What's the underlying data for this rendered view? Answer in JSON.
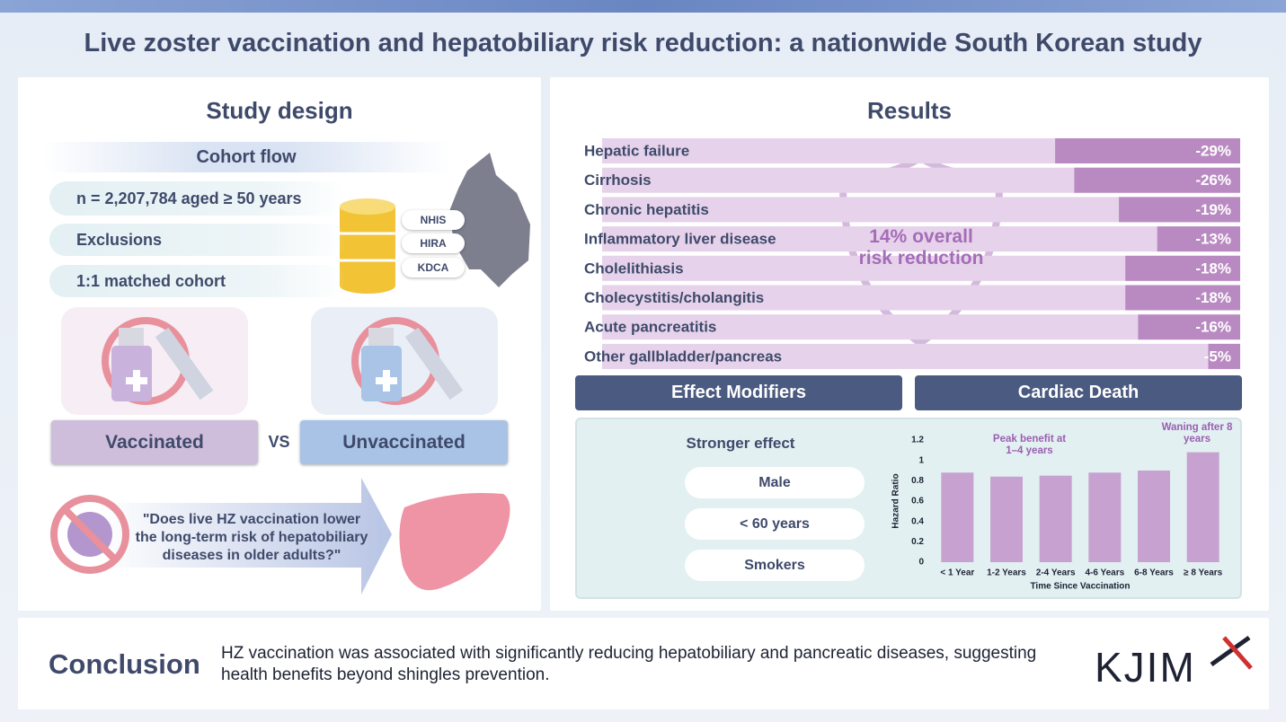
{
  "title": "Live zoster vaccination and hepatobiliary risk reduction: a nationwide South Korean study",
  "study_design": {
    "title": "Study design",
    "cohort_flow": "Cohort flow",
    "steps": [
      "n = 2,207,784 aged ≥ 50 years",
      "Exclusions",
      "1:1 matched cohort"
    ],
    "sources": [
      "NHIS",
      "HIRA",
      "KDCA"
    ],
    "groups": [
      "Vaccinated",
      "Unvaccinated"
    ],
    "vs": "VS",
    "question": "\"Does live HZ vaccination lower the long-term risk of hepatobiliary diseases in older adults?\""
  },
  "results": {
    "title": "Results",
    "sections": [
      "Effect Modifiers",
      "Cardiac Death"
    ],
    "stronger_effect": "Stronger effect",
    "modifiers": [
      "Male",
      "< 60 years",
      "Smokers"
    ]
  },
  "chart_data": [
    {
      "type": "bar",
      "orientation": "horizontal",
      "categories": [
        "Hepatic failure",
        "Cirrhosis",
        "Chronic hepatitis",
        "Inflammatory liver disease",
        "Cholelithiasis",
        "Cholecystitis/cholangitis",
        "Acute pancreatitis",
        "Other gallbladder/pancreas"
      ],
      "values": [
        -29,
        -26,
        -19,
        -13,
        -18,
        -18,
        -16,
        -5
      ],
      "value_labels": [
        "-29%",
        "-26%",
        "-19%",
        "-13%",
        "-18%",
        "-18%",
        "-16%",
        "-5%"
      ],
      "xlim": [
        -100,
        0
      ],
      "color": "#b98ac2",
      "track_color": "#e6d2ea",
      "annotation": "14% overall risk reduction"
    },
    {
      "type": "bar",
      "orientation": "vertical",
      "categories": [
        "< 1 Year",
        "1-2 Years",
        "2-4 Years",
        "4-6 Years",
        "6-8 Years",
        "≥ 8 Years"
      ],
      "values": [
        0.88,
        0.84,
        0.85,
        0.88,
        0.9,
        1.08
      ],
      "ylim": [
        0,
        1.2
      ],
      "yticks": [
        0,
        0.2,
        0.4,
        0.6,
        0.8,
        1,
        1.2
      ],
      "grid": false,
      "ylabel": "Hazard Ratio",
      "xlabel": "Time Since Vaccination",
      "annotations": [
        "Peak benefit at 1–4 years",
        "Waning after 8 years"
      ],
      "color": "#c7a2d0"
    }
  ],
  "conclusion": {
    "label": "Conclusion",
    "text": "HZ vaccination was associated with significantly reducing hepatobiliary and pancreatic diseases, suggesting health benefits beyond shingles prevention."
  },
  "logo": "KJIM"
}
